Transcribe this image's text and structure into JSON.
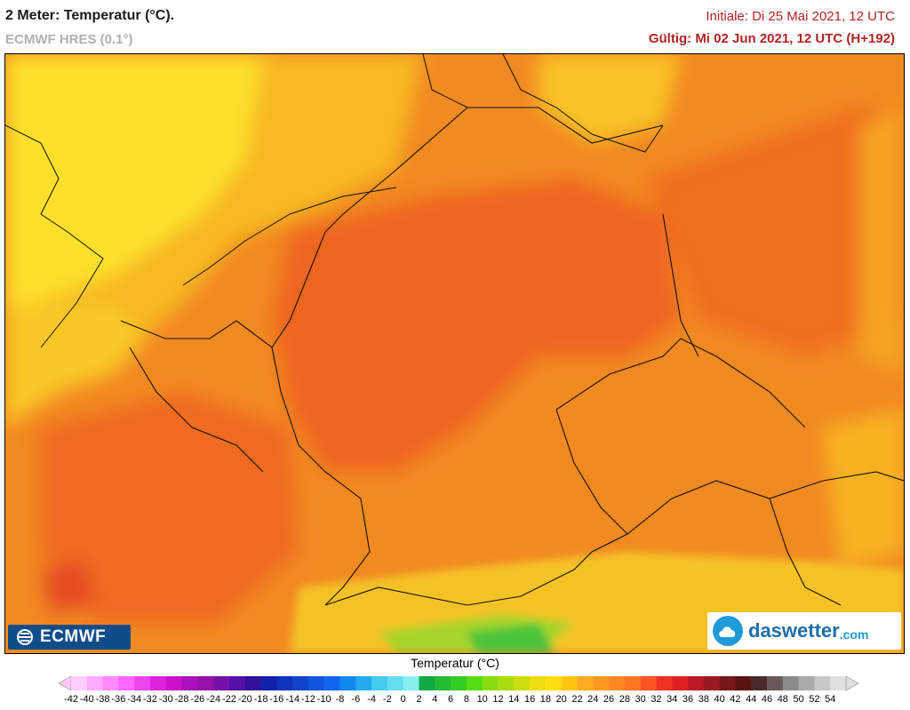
{
  "header": {
    "title": "2 Meter: Temperatur (°C).",
    "model": "ECMWF HRES (0.1°)",
    "initial": "Initiale: Di 25 Mai 2021, 12 UTC",
    "valid": "Gültig: Mi 02 Jun 2021, 12 UTC (H+192)"
  },
  "logos": {
    "left": "ECMWF",
    "right": "daswetter",
    "right_domain": ".com"
  },
  "legend": {
    "title": "Temperatur (°C)",
    "labels": [
      "-42",
      "-40",
      "-38",
      "-36",
      "-34",
      "-32",
      "-30",
      "-28",
      "-26",
      "-24",
      "-22",
      "-20",
      "-18",
      "-16",
      "-14",
      "-12",
      "-10",
      "-8",
      "-6",
      "-4",
      "-2",
      "0",
      "2",
      "4",
      "6",
      "8",
      "10",
      "12",
      "14",
      "16",
      "18",
      "20",
      "22",
      "24",
      "26",
      "28",
      "30",
      "32",
      "34",
      "36",
      "38",
      "40",
      "42",
      "44",
      "46",
      "48",
      "50",
      "52",
      "54"
    ],
    "colors": [
      "#ffccff",
      "#ffaaff",
      "#ff88ff",
      "#ff66ff",
      "#ee44ee",
      "#dd22dd",
      "#cc11cc",
      "#aa11bb",
      "#9911aa",
      "#7711aa",
      "#5511aa",
      "#331199",
      "#1122aa",
      "#1133bb",
      "#1144cc",
      "#1155dd",
      "#1166ee",
      "#1188ee",
      "#22aaee",
      "#44ccee",
      "#66ddee",
      "#88eeee",
      "#11aa44",
      "#22bb33",
      "#33cc22",
      "#55dd11",
      "#88dd11",
      "#aadd11",
      "#ccdd11",
      "#eedd11",
      "#ffdd11",
      "#ffc611",
      "#ffaa22",
      "#ff9922",
      "#ff8822",
      "#ff7722",
      "#ff5522",
      "#ee3322",
      "#dd2222",
      "#bb1a22",
      "#991a22",
      "#771818",
      "#5a1414",
      "#4a2a2a",
      "#6a5a5a",
      "#8a8a8a",
      "#aaaaaa",
      "#c8c8c8",
      "#e0e0e0"
    ]
  }
}
